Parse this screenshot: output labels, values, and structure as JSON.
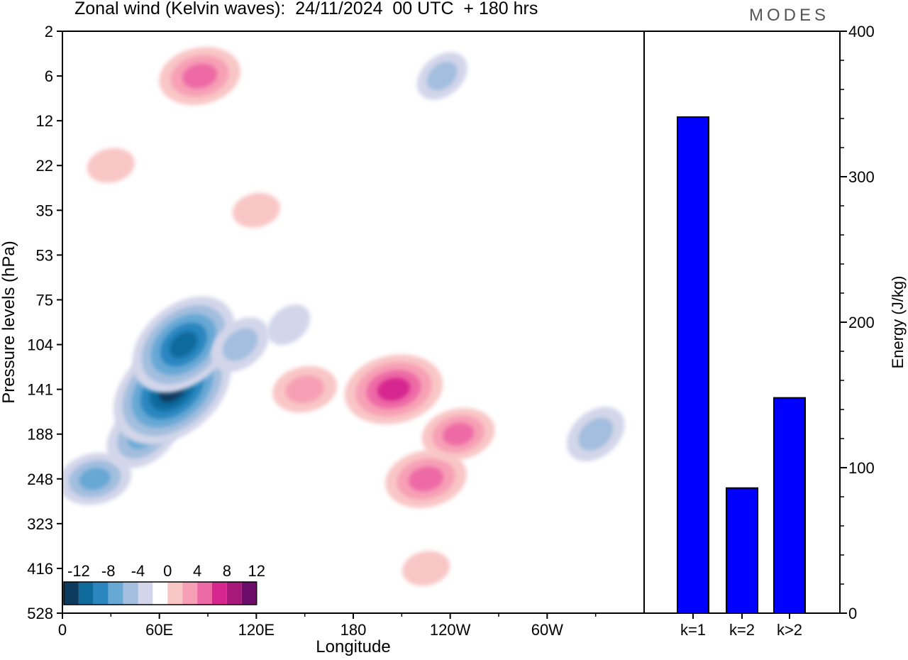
{
  "title": "Zonal wind (Kelvin waves):  24/11/2024  00 UTC  + 180 hrs",
  "brand": "MODES",
  "colors": {
    "neg": [
      "#0d3b5e",
      "#0f6a9c",
      "#2b86c0",
      "#67a8d4",
      "#a3bede",
      "#d3d6ea"
    ],
    "pos": [
      "#f9c6c6",
      "#f7a0b5",
      "#ee6aa6",
      "#d7278f",
      "#a8177a",
      "#6d0d6a"
    ],
    "bar": "#0000ff"
  },
  "chart_data": [
    {
      "type": "heatmap",
      "title": "Zonal wind (Kelvin waves)",
      "xlabel": "Longitude",
      "ylabel": "Pressure levels (hPa)",
      "x_ticks": [
        "0",
        "60E",
        "120E",
        "180",
        "120W",
        "60W"
      ],
      "y_ticks": [
        "2",
        "6",
        "12",
        "22",
        "35",
        "53",
        "75",
        "104",
        "141",
        "188",
        "248",
        "323",
        "416",
        "528"
      ],
      "colorbar": {
        "tick_labels": [
          "-12",
          "-8",
          "-4",
          "0",
          "4",
          "8",
          "12"
        ]
      },
      "features": [
        {
          "lon": 20,
          "lev": 248,
          "value": -5
        },
        {
          "lon": 50,
          "lev": 188,
          "value": -6
        },
        {
          "lon": 68,
          "lev": 141,
          "value": -12
        },
        {
          "lon": 75,
          "lev": 104,
          "value": -10
        },
        {
          "lon": 110,
          "lev": 104,
          "value": -4
        },
        {
          "lon": 140,
          "lev": 90,
          "value": -2
        },
        {
          "lon": 150,
          "lev": 141,
          "value": 4
        },
        {
          "lon": 205,
          "lev": 141,
          "value": 8
        },
        {
          "lon": 225,
          "lev": 248,
          "value": 6
        },
        {
          "lon": 245,
          "lev": 188,
          "value": 5
        },
        {
          "lon": 225,
          "lev": 416,
          "value": 2
        },
        {
          "lon": 330,
          "lev": 188,
          "value": -4
        },
        {
          "lon": 85,
          "lev": 6,
          "value": 6
        },
        {
          "lon": 30,
          "lev": 22,
          "value": 2
        },
        {
          "lon": 120,
          "lev": 35,
          "value": 2
        },
        {
          "lon": 235,
          "lev": 6,
          "value": -3
        }
      ]
    },
    {
      "type": "bar",
      "categories": [
        "k=1",
        "k=2",
        "k>2"
      ],
      "values": [
        341,
        86,
        148
      ],
      "ylabel": "Energy (J/kg)",
      "ylim": [
        0,
        400
      ],
      "y_ticks": [
        "0",
        "100",
        "200",
        "300",
        "400"
      ]
    }
  ]
}
